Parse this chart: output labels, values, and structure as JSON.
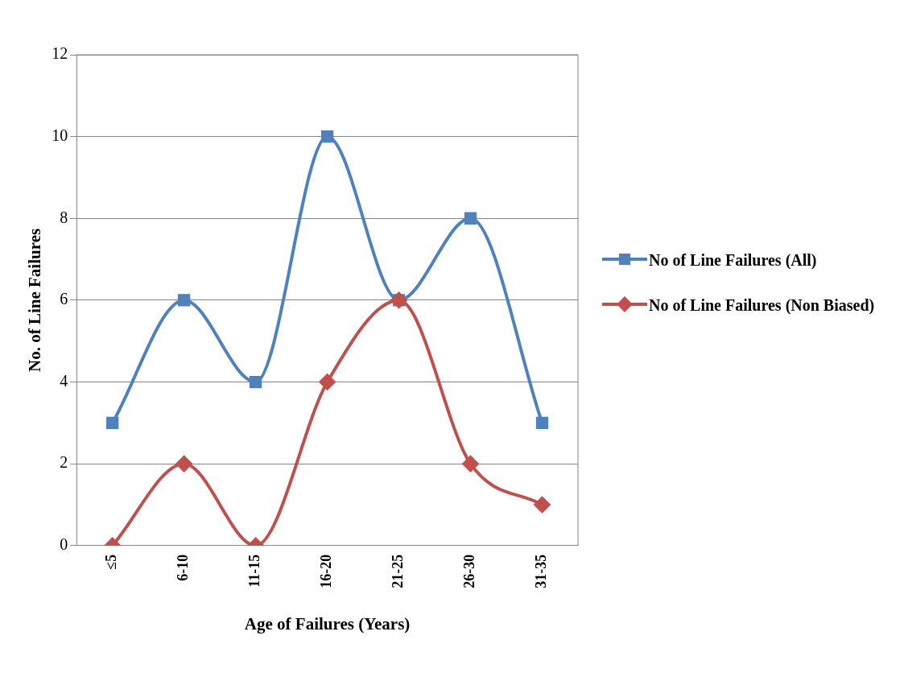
{
  "chart_data": {
    "type": "line",
    "xlabel": "Age of Failures (Years)",
    "ylabel": "No. of Line Failures",
    "categories": [
      "≤5",
      "6-10",
      "11-15",
      "16-20",
      "21-25",
      "26-30",
      "31-35"
    ],
    "series": [
      {
        "name": "No of Line Failures (All)",
        "color": "#4f81bd",
        "values": [
          3,
          6,
          4,
          10,
          6,
          8,
          3
        ],
        "marker": "square"
      },
      {
        "name": "No of Line Failures (Non Biased)",
        "color": "#c0504d",
        "values": [
          0,
          2,
          0,
          4,
          6,
          2,
          1
        ],
        "marker": "diamond"
      }
    ],
    "ylim": [
      0,
      12
    ],
    "yticks": [
      0,
      2,
      4,
      6,
      8,
      10,
      12
    ],
    "grid": "y",
    "legend": "right"
  }
}
